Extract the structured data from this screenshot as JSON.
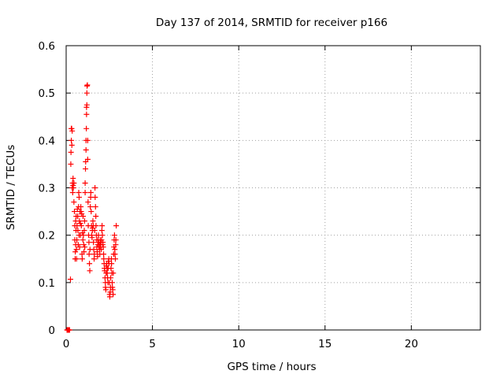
{
  "chart_data": {
    "type": "scatter",
    "title": "Day 137 of 2014, SRMTID for receiver p166",
    "xlabel": "GPS time / hours",
    "ylabel": "SRMTID / TECUs",
    "xlim": [
      0,
      24
    ],
    "ylim": [
      0,
      0.6
    ],
    "x_ticks": [
      0,
      5,
      10,
      15,
      20
    ],
    "y_ticks": [
      0,
      0.1,
      0.2,
      0.3,
      0.4,
      0.5,
      0.6
    ],
    "x_tick_labels": [
      "0",
      "5",
      "10",
      "15",
      "20"
    ],
    "y_tick_labels": [
      "0",
      "0.1",
      "0.2",
      "0.3",
      "0.4",
      "0.5",
      "0.6"
    ],
    "grid": true,
    "legend": "none",
    "marker": "plus",
    "color": "#ff0000",
    "series": [
      {
        "points": [
          [
            0.05,
            0.0
          ],
          [
            0.08,
            0.0
          ],
          [
            0.1,
            0.0
          ],
          [
            0.12,
            0.0
          ],
          [
            0.15,
            0.0
          ],
          [
            0.18,
            0.0
          ],
          [
            0.2,
            0.0
          ],
          [
            0.25,
            0.107
          ],
          [
            0.27,
            0.35
          ],
          [
            0.28,
            0.375
          ],
          [
            0.3,
            0.4
          ],
          [
            0.3,
            0.425
          ],
          [
            0.32,
            0.425
          ],
          [
            0.33,
            0.39
          ],
          [
            0.35,
            0.42
          ],
          [
            0.35,
            0.3
          ],
          [
            0.37,
            0.31
          ],
          [
            0.38,
            0.29
          ],
          [
            0.4,
            0.305
          ],
          [
            0.4,
            0.32
          ],
          [
            0.42,
            0.3
          ],
          [
            0.45,
            0.31
          ],
          [
            0.45,
            0.27
          ],
          [
            0.48,
            0.25
          ],
          [
            0.5,
            0.22
          ],
          [
            0.5,
            0.19
          ],
          [
            0.52,
            0.15
          ],
          [
            0.53,
            0.165
          ],
          [
            0.55,
            0.18
          ],
          [
            0.55,
            0.23
          ],
          [
            0.57,
            0.21
          ],
          [
            0.58,
            0.24
          ],
          [
            0.6,
            0.17
          ],
          [
            0.6,
            0.15
          ],
          [
            0.62,
            0.19
          ],
          [
            0.63,
            0.22
          ],
          [
            0.65,
            0.255
          ],
          [
            0.67,
            0.24
          ],
          [
            0.68,
            0.21
          ],
          [
            0.7,
            0.18
          ],
          [
            0.72,
            0.26
          ],
          [
            0.73,
            0.29
          ],
          [
            0.75,
            0.28
          ],
          [
            0.75,
            0.2
          ],
          [
            0.77,
            0.23
          ],
          [
            0.78,
            0.175
          ],
          [
            0.8,
            0.25
          ],
          [
            0.82,
            0.225
          ],
          [
            0.83,
            0.2
          ],
          [
            0.85,
            0.26
          ],
          [
            0.87,
            0.25
          ],
          [
            0.88,
            0.22
          ],
          [
            0.9,
            0.245
          ],
          [
            0.92,
            0.16
          ],
          [
            0.93,
            0.15
          ],
          [
            0.95,
            0.205
          ],
          [
            0.97,
            0.19
          ],
          [
            0.98,
            0.24
          ],
          [
            1.0,
            0.2
          ],
          [
            1.02,
            0.18
          ],
          [
            1.03,
            0.165
          ],
          [
            1.05,
            0.21
          ],
          [
            1.07,
            0.23
          ],
          [
            1.08,
            0.175
          ],
          [
            1.1,
            0.29
          ],
          [
            1.1,
            0.31
          ],
          [
            1.12,
            0.34
          ],
          [
            1.13,
            0.355
          ],
          [
            1.15,
            0.38
          ],
          [
            1.15,
            0.4
          ],
          [
            1.17,
            0.425
          ],
          [
            1.18,
            0.455
          ],
          [
            1.18,
            0.47
          ],
          [
            1.2,
            0.475
          ],
          [
            1.2,
            0.5
          ],
          [
            1.21,
            0.515
          ],
          [
            1.23,
            0.517
          ],
          [
            1.25,
            0.4
          ],
          [
            1.25,
            0.36
          ],
          [
            1.27,
            0.27
          ],
          [
            1.28,
            0.22
          ],
          [
            1.3,
            0.2
          ],
          [
            1.32,
            0.185
          ],
          [
            1.33,
            0.16
          ],
          [
            1.35,
            0.14
          ],
          [
            1.37,
            0.125
          ],
          [
            1.38,
            0.17
          ],
          [
            1.4,
            0.26
          ],
          [
            1.42,
            0.28
          ],
          [
            1.43,
            0.29
          ],
          [
            1.45,
            0.25
          ],
          [
            1.47,
            0.22
          ],
          [
            1.48,
            0.2
          ],
          [
            1.5,
            0.195
          ],
          [
            1.52,
            0.21
          ],
          [
            1.53,
            0.215
          ],
          [
            1.55,
            0.23
          ],
          [
            1.57,
            0.22
          ],
          [
            1.58,
            0.185
          ],
          [
            1.6,
            0.17
          ],
          [
            1.62,
            0.15
          ],
          [
            1.63,
            0.16
          ],
          [
            1.65,
            0.21
          ],
          [
            1.67,
            0.3
          ],
          [
            1.68,
            0.28
          ],
          [
            1.7,
            0.26
          ],
          [
            1.72,
            0.24
          ],
          [
            1.73,
            0.22
          ],
          [
            1.75,
            0.2
          ],
          [
            1.77,
            0.19
          ],
          [
            1.78,
            0.175
          ],
          [
            1.8,
            0.165
          ],
          [
            1.82,
            0.155
          ],
          [
            1.83,
            0.18
          ],
          [
            1.85,
            0.19
          ],
          [
            1.87,
            0.2
          ],
          [
            1.88,
            0.185
          ],
          [
            1.9,
            0.175
          ],
          [
            1.92,
            0.18
          ],
          [
            1.93,
            0.17
          ],
          [
            1.95,
            0.16
          ],
          [
            1.97,
            0.19
          ],
          [
            1.98,
            0.18
          ],
          [
            2.0,
            0.175
          ],
          [
            2.02,
            0.185
          ],
          [
            2.03,
            0.17
          ],
          [
            2.05,
            0.19
          ],
          [
            2.07,
            0.21
          ],
          [
            2.08,
            0.22
          ],
          [
            2.1,
            0.2
          ],
          [
            2.12,
            0.18
          ],
          [
            2.13,
            0.185
          ],
          [
            2.15,
            0.175
          ],
          [
            2.17,
            0.16
          ],
          [
            2.18,
            0.15
          ],
          [
            2.2,
            0.14
          ],
          [
            2.22,
            0.13
          ],
          [
            2.23,
            0.125
          ],
          [
            2.25,
            0.11
          ],
          [
            2.27,
            0.1
          ],
          [
            2.28,
            0.09
          ],
          [
            2.3,
            0.085
          ],
          [
            2.32,
            0.12
          ],
          [
            2.33,
            0.135
          ],
          [
            2.35,
            0.14
          ],
          [
            2.37,
            0.13
          ],
          [
            2.38,
            0.12
          ],
          [
            2.4,
            0.11
          ],
          [
            2.42,
            0.1
          ],
          [
            2.43,
            0.13
          ],
          [
            2.45,
            0.145
          ],
          [
            2.47,
            0.15
          ],
          [
            2.48,
            0.14
          ],
          [
            2.5,
            0.1
          ],
          [
            2.52,
            0.075
          ],
          [
            2.53,
            0.07
          ],
          [
            2.55,
            0.08
          ],
          [
            2.57,
            0.09
          ],
          [
            2.58,
            0.11
          ],
          [
            2.6,
            0.13
          ],
          [
            2.62,
            0.15
          ],
          [
            2.63,
            0.14
          ],
          [
            2.65,
            0.12
          ],
          [
            2.67,
            0.1
          ],
          [
            2.68,
            0.09
          ],
          [
            2.7,
            0.085
          ],
          [
            2.72,
            0.075
          ],
          [
            2.73,
            0.12
          ],
          [
            2.75,
            0.16
          ],
          [
            2.77,
            0.175
          ],
          [
            2.78,
            0.19
          ],
          [
            2.8,
            0.2
          ],
          [
            2.82,
            0.17
          ],
          [
            2.83,
            0.16
          ],
          [
            2.85,
            0.15
          ],
          [
            2.87,
            0.18
          ],
          [
            2.88,
            0.19
          ],
          [
            2.9,
            0.22
          ]
        ]
      }
    ]
  }
}
